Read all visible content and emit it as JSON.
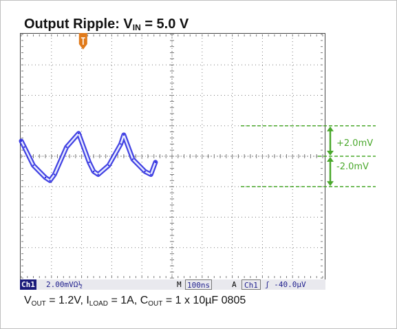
{
  "title": {
    "prefix": "Output Ripple: V",
    "sub": "IN",
    "suffix": " = 5.0 V"
  },
  "status": {
    "ch_tag": "Ch1",
    "ch_scale": "2.00mVΩ½",
    "m_tag": "M",
    "timebase": "100ns",
    "a_tag": "A",
    "trigger_ch": "Ch1",
    "trigger_level": "ʃ -40.0µV"
  },
  "caption": {
    "v": "V",
    "v_sub": "OUT",
    "v_val": " = 1.2V, I",
    "i_sub": "LOAD",
    "i_val": " = 1A, C",
    "c_sub": "OUT",
    "c_val": " = 1 x 10µF 0805"
  },
  "annotations": {
    "pos": "+2.0mV",
    "neg": "-2.0mV"
  },
  "colors": {
    "trace": "#2f2fe0",
    "marker": "#e07a1a",
    "annotation": "#4aa82c",
    "grid": "#7a7a7a"
  },
  "chart_data": {
    "type": "line",
    "title": "Output Ripple: VIN = 5.0 V",
    "xlabel": "",
    "ylabel": "",
    "x_unit_per_div": "100ns",
    "y_unit_per_div": "2.00mV",
    "xlim": [
      0,
      1000
    ],
    "ylim": [
      -8,
      8
    ],
    "grid": true,
    "series": [
      {
        "x": [
          0,
          10,
          40,
          80,
          95,
          110,
          150,
          190,
          225,
          240,
          255,
          290,
          330,
          340,
          370,
          410,
          430,
          445
        ],
        "y": [
          1.0,
          0.6,
          -0.6,
          -1.4,
          -1.6,
          -1.2,
          0.6,
          1.5,
          -0.4,
          -1.0,
          -1.2,
          -0.6,
          0.8,
          1.4,
          -0.2,
          -1.0,
          -1.2,
          -0.4
        ]
      }
    ],
    "annotations": [
      {
        "label": "+2.0mV",
        "y": 2.0
      },
      {
        "label": "-2.0mV",
        "y": -2.0
      }
    ]
  }
}
